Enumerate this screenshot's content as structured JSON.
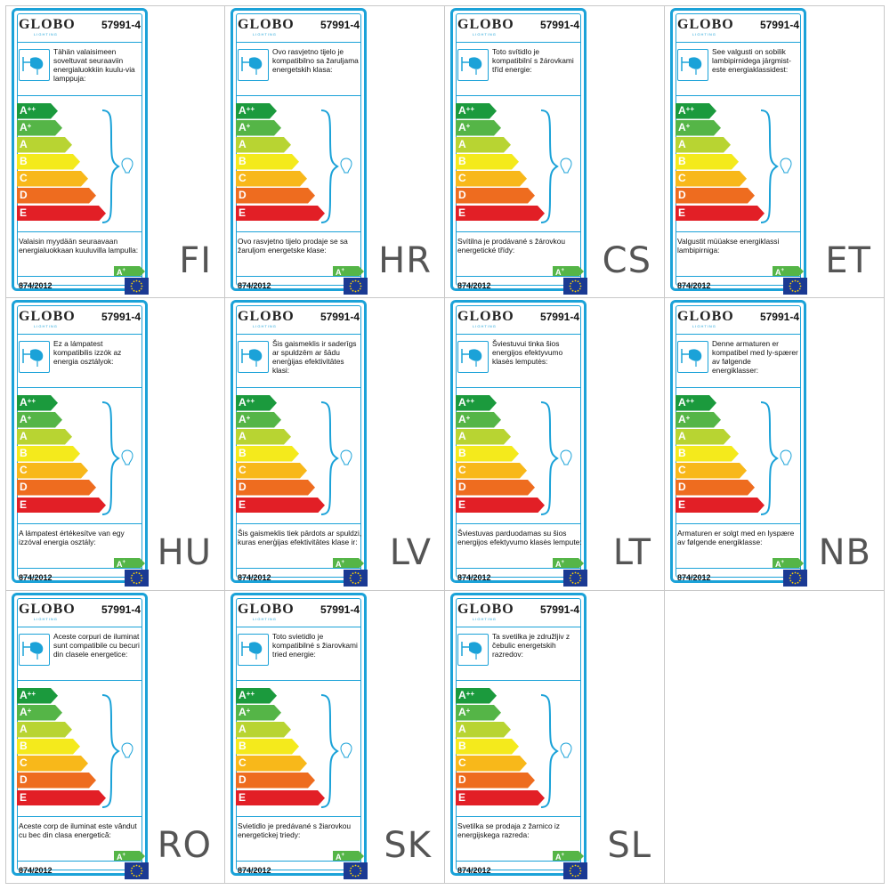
{
  "brand": "GLOBO",
  "brand_sub": "LIGHTING",
  "model": "57991-4",
  "regulation": "874/2012",
  "classes": [
    {
      "name": "A",
      "sup": "++",
      "color": "#1b9a3d"
    },
    {
      "name": "A",
      "sup": "+",
      "color": "#55b547"
    },
    {
      "name": "A",
      "sup": "",
      "color": "#b8d432"
    },
    {
      "name": "B",
      "sup": "",
      "color": "#f4ea1c"
    },
    {
      "name": "C",
      "sup": "",
      "color": "#f8b81a"
    },
    {
      "name": "D",
      "sup": "",
      "color": "#ee6c1f"
    },
    {
      "name": "E",
      "sup": "",
      "color": "#e21f26"
    }
  ],
  "sold_class": {
    "name": "A",
    "sup": "+",
    "color": "#55b547"
  },
  "accent_color": "#1ba2d8",
  "labels": [
    {
      "code": "FI",
      "compat": "Tähän valaisimeen soveltuvat seuraaviin energialuokkiin kuulu-via lamppuja:",
      "sold": "Valaisin myydään seuraavaan energialuokkaan kuuluvilla lampulla:"
    },
    {
      "code": "HR",
      "compat": "Ovo rasvjetno tijelo je kompatibilno sa žaruljama energetskih klasa:",
      "sold": "Ovo rasvjetno tijelo prodaje se sa žaruljom energetske klase:"
    },
    {
      "code": "CS",
      "compat": "Toto svítidlo je kompatibilní s žárovkami tříd energie:",
      "sold": "Svítilna je prodávané s žárovkou energetické třídy:"
    },
    {
      "code": "ET",
      "compat": "See valgusti on sobilik lambipirnidega järgmist-este energiaklassidest:",
      "sold": "Valgustit müüakse energiklassi lambipirniga:"
    },
    {
      "code": "HU",
      "compat": "Ez a lámpatest kompatibilis izzók az energia osztályok:",
      "sold": "A lámpatest értékesítve van egy izzóval energia osztály:"
    },
    {
      "code": "LV",
      "compat": "Šis gaismeklis ir saderīgs ar spuldzēm ar šādu enerģijas efektivitātes klasi:",
      "sold": "Šis gaismeklis tiek pārdots ar spuldzi, kuras enerģijas efektivitātes klase ir:"
    },
    {
      "code": "LT",
      "compat": "Šviestuvui tinka šios energijos efektyvumo klasės lemputės:",
      "sold": "Šviestuvas parduodamas su šios energijos efektyvumo klasės lempute:"
    },
    {
      "code": "NB",
      "compat": "Denne armaturen er kompatibel med ly-spærer av følgende energiklasser:",
      "sold": "Armaturen er solgt med en lyspære av følgende energiklasse:"
    },
    {
      "code": "RO",
      "compat": "Aceste corpuri de iluminat sunt compatibile cu becuri din clasele energetice:",
      "sold": "Aceste corp de iluminat este vândut cu bec din clasa energetică:"
    },
    {
      "code": "SK",
      "compat": "Toto svietidlo je kompatibilné s žiarovkami tried energie:",
      "sold": "Svietidlo je predávané s žiarovkou energetickej triedy:"
    },
    {
      "code": "SL",
      "compat": "Ta svetilka je združljiv z čebulic energetskih razredov:",
      "sold": "Svetilka se prodaja z žarnico iz energijskega razreda:"
    }
  ]
}
